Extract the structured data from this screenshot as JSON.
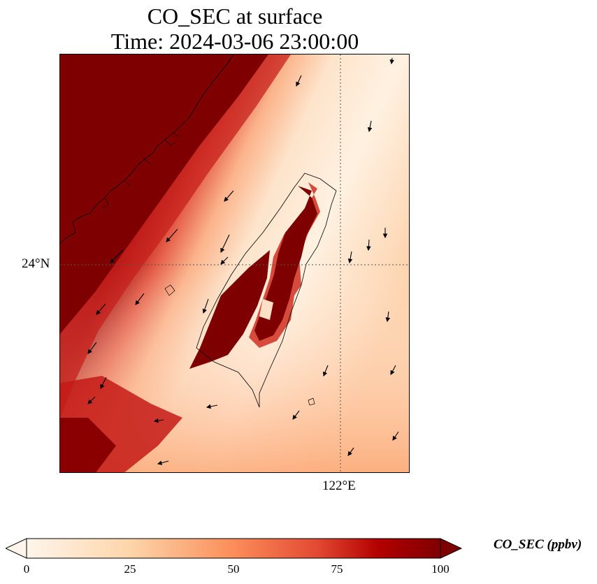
{
  "title": {
    "line1": "CO_SEC at surface",
    "line2": "Time: 2024-03-06 23:00:00"
  },
  "axes": {
    "lat_label": "24°N",
    "lon_label": "122°E",
    "gridlines": "dotted"
  },
  "colorbar": {
    "label": "CO_SEC (ppbv)",
    "ticks": [
      "0",
      "25",
      "50",
      "75",
      "100"
    ],
    "min": 0,
    "max": 100,
    "colormap": [
      "#fff5eb",
      "#fee6ce",
      "#fdd0a2",
      "#fdae6b",
      "#fd8d3c",
      "#f16913",
      "#d94801",
      "#a63603",
      "#7f2704"
    ],
    "extend": "both"
  },
  "map": {
    "feature": "coastlines",
    "overlay": "wind vectors",
    "high_value_color": "#800000"
  }
}
